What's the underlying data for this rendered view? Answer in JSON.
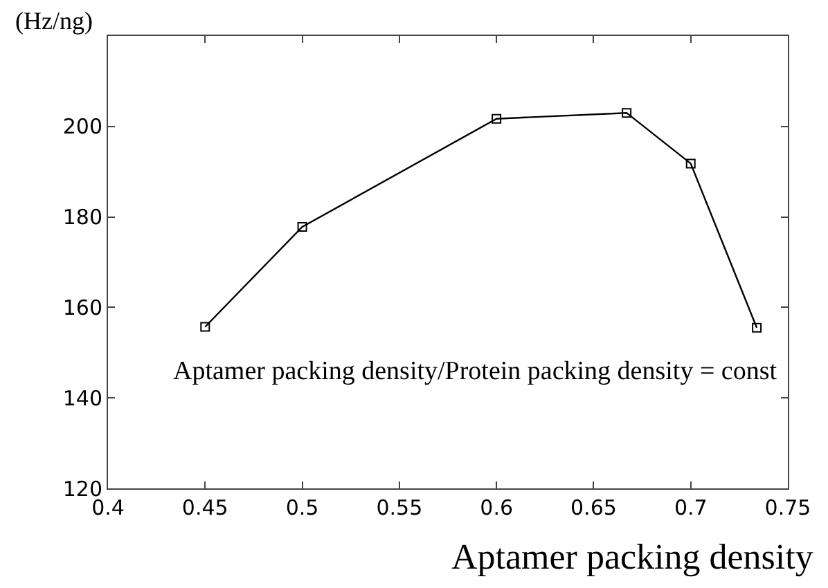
{
  "chart_data": {
    "type": "line",
    "xlabel": "Aptamer packing density",
    "ylabel": "(Hz/ng)",
    "x": [
      0.45,
      0.5,
      0.6,
      0.667,
      0.7,
      0.734
    ],
    "series": [
      {
        "color": "#000000",
        "values": [
          155.7,
          177.8,
          201.7,
          203.0,
          191.8,
          155.5
        ]
      }
    ],
    "xlim": [
      0.4,
      0.75
    ],
    "xticks": [
      0.4,
      0.45,
      0.5,
      0.55,
      0.6,
      0.65,
      0.7,
      0.75
    ],
    "ylim": [
      120,
      220
    ],
    "yticks": [
      120,
      140,
      160,
      180,
      200
    ],
    "annotations": [
      "Aptamer packing density/Protein packing density = const"
    ],
    "marker": "square",
    "line_style": "solid"
  }
}
